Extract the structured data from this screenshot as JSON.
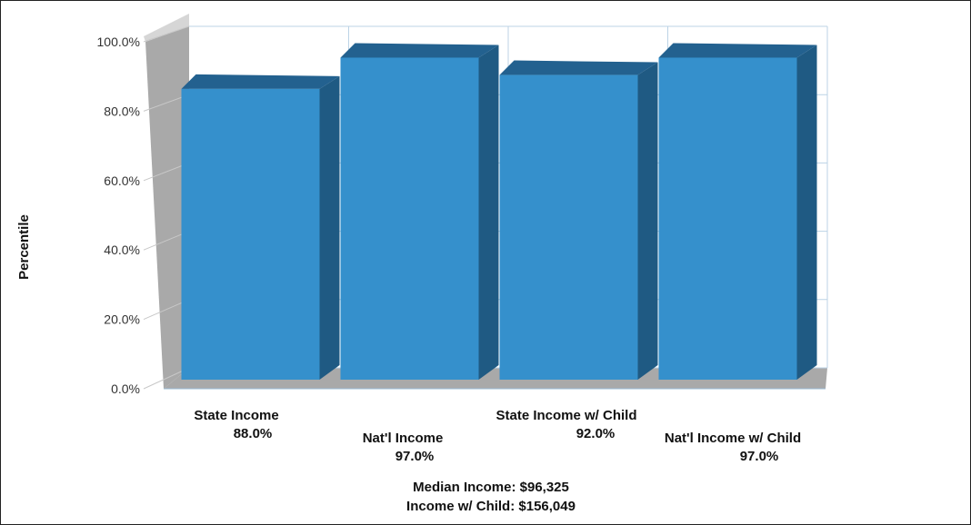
{
  "chart_data": {
    "type": "bar",
    "ylabel": "Percentile",
    "ylim": [
      0,
      100
    ],
    "yticks": [
      "0.0%",
      "20.0%",
      "40.0%",
      "60.0%",
      "80.0%",
      "100.0%"
    ],
    "categories": [
      "State Income",
      "Nat'l Income",
      "State Income w/ Child",
      "Nat'l Income w/ Child"
    ],
    "values": [
      88.0,
      97.0,
      92.0,
      97.0
    ],
    "value_labels": [
      "88.0%",
      "97.0%",
      "92.0%",
      "97.0%"
    ],
    "grid": true,
    "style": "3d-column"
  },
  "footer": {
    "median_income": "Median Income: $96,325",
    "income_with_child": "Income w/ Child: $156,049"
  },
  "colors": {
    "bar_front": "#3590cc",
    "bar_top": "#23618f",
    "bar_side": "#1f5a83",
    "wall": "#a9a9a9",
    "grid": "#bcd3e6"
  }
}
